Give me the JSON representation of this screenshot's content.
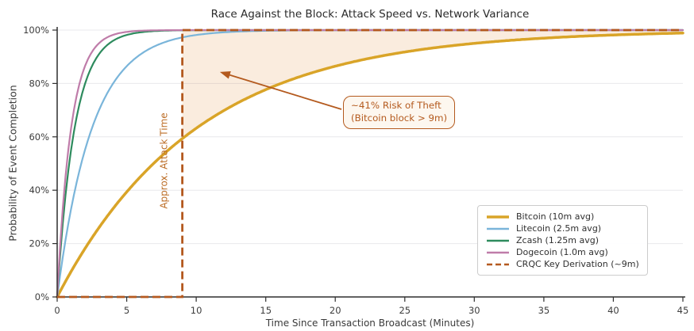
{
  "chart_data": {
    "type": "line",
    "title": "Race Against the Block: Attack Speed vs. Network Variance",
    "xlabel": "Time Since Transaction Broadcast (Minutes)",
    "ylabel": "Probability of Event Completion",
    "xlim": [
      0,
      45
    ],
    "ylim": [
      0,
      1
    ],
    "x_ticks": [
      {
        "value": 0,
        "label": "0"
      },
      {
        "value": 5,
        "label": "5"
      },
      {
        "value": 10,
        "label": "10"
      },
      {
        "value": 15,
        "label": "15"
      },
      {
        "value": 20,
        "label": "20"
      },
      {
        "value": 25,
        "label": "25"
      },
      {
        "value": 30,
        "label": "30"
      },
      {
        "value": 35,
        "label": "35"
      },
      {
        "value": 40,
        "label": "40"
      },
      {
        "value": 45,
        "label": "45"
      }
    ],
    "y_ticks": [
      {
        "value": 0.0,
        "label": "0%"
      },
      {
        "value": 0.2,
        "label": "20%"
      },
      {
        "value": 0.4,
        "label": "40%"
      },
      {
        "value": 0.6,
        "label": "60%"
      },
      {
        "value": 0.8,
        "label": "80%"
      },
      {
        "value": 1.0,
        "label": "100%"
      }
    ],
    "grid": "horizontal",
    "legend_position": "lower right",
    "series": [
      {
        "name": "Bitcoin (10m avg)",
        "model": "exponential_cdf",
        "mean_minutes": 10,
        "color": "#D9A428",
        "line_width": 3.5,
        "dash": false
      },
      {
        "name": "Litecoin (2.5m avg)",
        "model": "exponential_cdf",
        "mean_minutes": 2.5,
        "color": "#7AB5DA",
        "line_width": 2.2,
        "dash": false
      },
      {
        "name": "Zcash (1.25m avg)",
        "model": "exponential_cdf",
        "mean_minutes": 1.25,
        "color": "#2E8B5E",
        "line_width": 2.2,
        "dash": false
      },
      {
        "name": "Dogecoin (1.0m avg)",
        "model": "exponential_cdf",
        "mean_minutes": 1.0,
        "color": "#BF7CA9",
        "line_width": 2.2,
        "dash": false
      },
      {
        "name": "CRQC Key Derivation (~9m)",
        "model": "step",
        "step_at_minutes": 9,
        "color": "#B4591F",
        "line_width": 2.8,
        "dash": true
      }
    ],
    "sampled_points": {
      "x_minutes": [
        0,
        1,
        2,
        3,
        5,
        7,
        9,
        10,
        15,
        20,
        25,
        30,
        35,
        40,
        45
      ],
      "series": [
        {
          "name": "Bitcoin (10m avg)",
          "y": [
            0,
            0.095,
            0.181,
            0.259,
            0.393,
            0.503,
            0.593,
            0.632,
            0.777,
            0.865,
            0.918,
            0.95,
            0.97,
            0.982,
            0.989
          ]
        },
        {
          "name": "Litecoin (2.5m avg)",
          "y": [
            0,
            0.33,
            0.551,
            0.699,
            0.865,
            0.939,
            0.973,
            0.982,
            0.998,
            1,
            1,
            1,
            1,
            1,
            1
          ]
        },
        {
          "name": "Zcash (1.25m avg)",
          "y": [
            0,
            0.551,
            0.798,
            0.909,
            0.982,
            0.996,
            0.999,
            1,
            1,
            1,
            1,
            1,
            1,
            1,
            1
          ]
        },
        {
          "name": "Dogecoin (1.0m avg)",
          "y": [
            0,
            0.632,
            0.865,
            0.95,
            0.993,
            0.999,
            1,
            1,
            1,
            1,
            1,
            1,
            1,
            1,
            1
          ]
        },
        {
          "name": "CRQC Key Derivation (~9m)",
          "y": [
            0,
            0,
            0,
            0,
            0,
            0,
            1,
            1,
            1,
            1,
            1,
            1,
            1,
            1,
            1
          ]
        }
      ]
    },
    "risk_region": {
      "series": "Bitcoin (10m avg)",
      "from_minutes": 9,
      "to_minutes": 45,
      "fill_color": "rgba(224,138,50,0.16)"
    },
    "vline": {
      "x_minutes": 9,
      "label": "Approx. Attack Time",
      "color": "#B4591F",
      "label_color": "#BC6D26"
    },
    "annotation": {
      "lines": [
        "~41% Risk of Theft",
        "(Bitcoin block > 9m)"
      ],
      "color": "#B45A1E",
      "arrow_tip": {
        "x_minutes": 11.7,
        "probability": 0.843
      }
    },
    "style": {
      "grid_color": "#e8e8ec",
      "axis_color": "#2e2e2e",
      "text_color": "#3d3d3d",
      "title_color": "#2b2b2b"
    }
  }
}
